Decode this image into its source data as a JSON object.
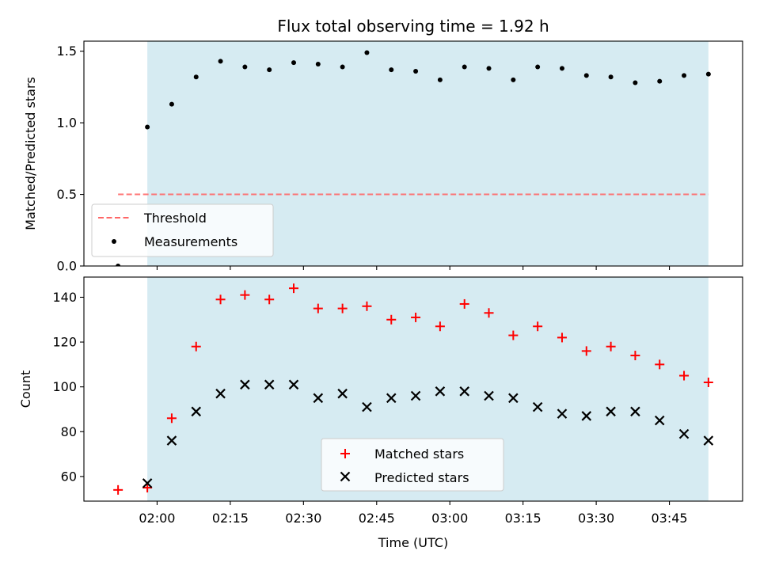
{
  "chart_data": [
    {
      "type": "scatter",
      "title": "Flux total observing time = 1.92 h",
      "ylabel": "Matched/Predicted stars",
      "xlabel": "",
      "x_unit": "minutes after 00:00 UTC",
      "xlim": [
        "01:45",
        "04:00"
      ],
      "ylim": [
        0,
        1.57
      ],
      "yticks": [
        0.0,
        0.5,
        1.0,
        1.5
      ],
      "ytick_labels": [
        "0.0",
        "0.5",
        "1.0",
        "1.5"
      ],
      "shaded_region": {
        "x_start": "01:58",
        "x_end": "03:53",
        "color": "#add8e6"
      },
      "legend_position": "lower-left",
      "threshold": {
        "name": "Threshold",
        "value": 0.5,
        "x_start": "01:52",
        "x_end": "03:53",
        "color": "#ff6666",
        "style": "dashed"
      },
      "series": [
        {
          "name": "Measurements",
          "color": "#000000",
          "marker": "dot",
          "x": [
            "01:52",
            "01:58",
            "02:03",
            "02:08",
            "02:13",
            "02:18",
            "02:23",
            "02:28",
            "02:33",
            "02:38",
            "02:43",
            "02:48",
            "02:53",
            "02:58",
            "03:03",
            "03:08",
            "03:13",
            "03:18",
            "03:23",
            "03:28",
            "03:33",
            "03:38",
            "03:43",
            "03:48",
            "03:53"
          ],
          "y": [
            0.0,
            0.97,
            1.13,
            1.32,
            1.43,
            1.39,
            1.37,
            1.42,
            1.41,
            1.39,
            1.49,
            1.37,
            1.36,
            1.3,
            1.39,
            1.38,
            1.3,
            1.39,
            1.38,
            1.33,
            1.32,
            1.28,
            1.29,
            1.33,
            1.34
          ]
        }
      ]
    },
    {
      "type": "scatter",
      "title": "",
      "ylabel": "Count",
      "xlabel": "Time (UTC)",
      "x_unit": "minutes after 00:00 UTC",
      "xlim": [
        "01:45",
        "04:00"
      ],
      "xticks": [
        "02:00",
        "02:15",
        "02:30",
        "02:45",
        "03:00",
        "03:15",
        "03:30",
        "03:45"
      ],
      "ylim": [
        49,
        149
      ],
      "yticks": [
        60,
        80,
        100,
        120,
        140
      ],
      "shaded_region": {
        "x_start": "01:58",
        "x_end": "03:53",
        "color": "#add8e6"
      },
      "legend_position": "lower-center",
      "series": [
        {
          "name": "Matched stars",
          "color": "#ff0000",
          "marker": "plus",
          "x": [
            "01:52",
            "01:58",
            "02:03",
            "02:08",
            "02:13",
            "02:18",
            "02:23",
            "02:28",
            "02:33",
            "02:38",
            "02:43",
            "02:48",
            "02:53",
            "02:58",
            "03:03",
            "03:08",
            "03:13",
            "03:18",
            "03:23",
            "03:28",
            "03:33",
            "03:38",
            "03:43",
            "03:48",
            "03:53"
          ],
          "y": [
            54,
            55,
            86,
            118,
            139,
            141,
            139,
            144,
            135,
            135,
            136,
            130,
            131,
            127,
            137,
            133,
            123,
            127,
            122,
            116,
            118,
            114,
            110,
            105,
            102
          ]
        },
        {
          "name": "Predicted stars",
          "color": "#000000",
          "marker": "x",
          "x": [
            "01:58",
            "02:03",
            "02:08",
            "02:13",
            "02:18",
            "02:23",
            "02:28",
            "02:33",
            "02:38",
            "02:43",
            "02:48",
            "02:53",
            "02:58",
            "03:03",
            "03:08",
            "03:13",
            "03:18",
            "03:23",
            "03:28",
            "03:33",
            "03:38",
            "03:43",
            "03:48",
            "03:53"
          ],
          "y": [
            57,
            76,
            89,
            97,
            101,
            101,
            101,
            95,
            97,
            91,
            95,
            96,
            98,
            98,
            96,
            95,
            91,
            88,
            87,
            89,
            89,
            85,
            79,
            76
          ]
        }
      ]
    }
  ]
}
